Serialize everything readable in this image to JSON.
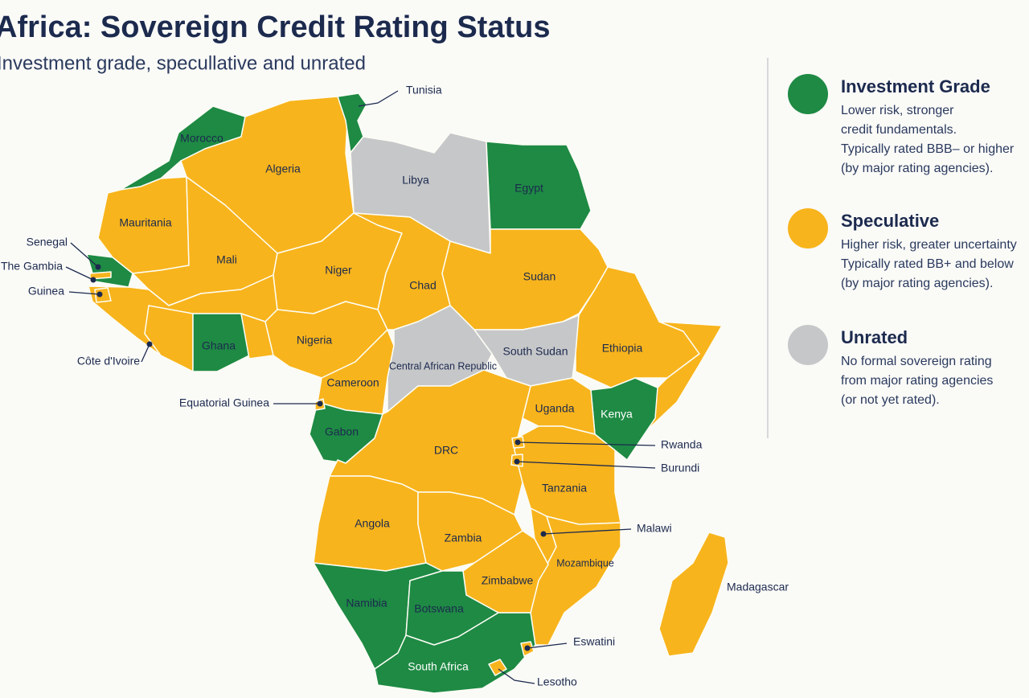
{
  "title": "Africa: Sovereign Credit Rating Status",
  "subtitle": "Investment grade, specullative and unrated",
  "legend": [
    {
      "name": "Investment Grade",
      "color": "#1e8a44",
      "description": [
        "Lower risk, stronger",
        "credit fundamentals.",
        "Typically rated BBB– or higher",
        "(by major rating agencies)."
      ]
    },
    {
      "name": "Speculative",
      "color": "#f8b41c",
      "description": [
        "Higher risk, greater uncertainty",
        "Typically rated BB+ and below",
        "(by major rating agencies)."
      ]
    },
    {
      "name": "Unrated",
      "color": "#c6c7c9",
      "description": [
        "No formal sovereign rating",
        "from major rating agencies",
        "(or not yet rated)."
      ]
    }
  ],
  "countries": [
    {
      "name": "Tunisia",
      "rating": "Investment Grade"
    },
    {
      "name": "Morocco",
      "rating": "Investment Grade"
    },
    {
      "name": "Algeria",
      "rating": "Speculative"
    },
    {
      "name": "Libya",
      "rating": "Unrated"
    },
    {
      "name": "Egypt",
      "rating": "Investment Grade"
    },
    {
      "name": "Mauritania",
      "rating": "Speculative"
    },
    {
      "name": "Senegal",
      "rating": "Investment Grade"
    },
    {
      "name": "The Gambia",
      "rating": "Speculative"
    },
    {
      "name": "Guinea",
      "rating": "Speculative"
    },
    {
      "name": "Mali",
      "rating": "Speculative"
    },
    {
      "name": "Niger",
      "rating": "Speculative"
    },
    {
      "name": "Chad",
      "rating": "Speculative"
    },
    {
      "name": "Sudan",
      "rating": "Speculative"
    },
    {
      "name": "Côte d'Ivoire",
      "rating": "Speculative"
    },
    {
      "name": "Ghana",
      "rating": "Investment Grade"
    },
    {
      "name": "Nigeria",
      "rating": "Speculative"
    },
    {
      "name": "Central African Republic",
      "rating": "Unrated"
    },
    {
      "name": "South Sudan",
      "rating": "Unrated"
    },
    {
      "name": "Ethiopia",
      "rating": "Speculative"
    },
    {
      "name": "Cameroon",
      "rating": "Speculative"
    },
    {
      "name": "Equatorial Guinea",
      "rating": "Speculative"
    },
    {
      "name": "Gabon",
      "rating": "Investment Grade"
    },
    {
      "name": "Uganda",
      "rating": "Speculative"
    },
    {
      "name": "Kenya",
      "rating": "Investment Grade"
    },
    {
      "name": "DRC",
      "rating": "Speculative"
    },
    {
      "name": "Rwanda",
      "rating": "Speculative"
    },
    {
      "name": "Burundi",
      "rating": "Speculative"
    },
    {
      "name": "Tanzania",
      "rating": "Speculative"
    },
    {
      "name": "Angola",
      "rating": "Speculative"
    },
    {
      "name": "Zambia",
      "rating": "Speculative"
    },
    {
      "name": "Malawi",
      "rating": "Speculative"
    },
    {
      "name": "Mozambique",
      "rating": "Speculative"
    },
    {
      "name": "Zimbabwe",
      "rating": "Speculative"
    },
    {
      "name": "Madagascar",
      "rating": "Speculative"
    },
    {
      "name": "Namibia",
      "rating": "Investment Grade"
    },
    {
      "name": "Botswana",
      "rating": "Investment Grade"
    },
    {
      "name": "Eswatini",
      "rating": "Speculative"
    },
    {
      "name": "South Africa",
      "rating": "Investment Grade"
    },
    {
      "name": "Lesotho",
      "rating": "Speculative"
    }
  ]
}
